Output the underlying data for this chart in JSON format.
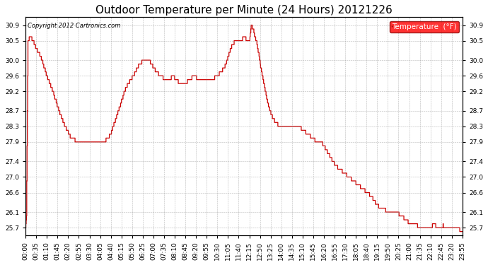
{
  "title": "Outdoor Temperature per Minute (24 Hours) 20121226",
  "copyright_text": "Copyright 2012 Cartronics.com",
  "legend_label": "Temperature  (°F)",
  "yticks": [
    25.7,
    26.1,
    26.6,
    27.0,
    27.4,
    27.9,
    28.3,
    28.7,
    29.2,
    29.6,
    30.0,
    30.5,
    30.9
  ],
  "ylim": [
    25.5,
    31.1
  ],
  "line_color": "#cc0000",
  "background_color": "#ffffff",
  "grid_color": "#888888",
  "title_fontsize": 11,
  "tick_fontsize": 6.5,
  "xlabel_rotation": 90,
  "xtick_labels": [
    "00:00",
    "00:35",
    "01:10",
    "01:45",
    "02:20",
    "02:55",
    "03:30",
    "04:05",
    "04:40",
    "05:15",
    "05:50",
    "06:25",
    "07:00",
    "07:35",
    "08:10",
    "08:45",
    "09:20",
    "09:55",
    "10:30",
    "11:05",
    "11:40",
    "12:15",
    "12:50",
    "13:25",
    "14:00",
    "14:35",
    "15:10",
    "15:45",
    "16:20",
    "16:55",
    "17:30",
    "18:05",
    "18:40",
    "19:15",
    "19:50",
    "20:25",
    "21:00",
    "21:35",
    "22:10",
    "22:45",
    "23:20",
    "23:55"
  ],
  "keypoints": [
    [
      0,
      25.7
    ],
    [
      3,
      26.0
    ],
    [
      8,
      30.5
    ],
    [
      15,
      30.6
    ],
    [
      25,
      30.5
    ],
    [
      35,
      30.3
    ],
    [
      50,
      30.1
    ],
    [
      70,
      29.6
    ],
    [
      90,
      29.2
    ],
    [
      110,
      28.7
    ],
    [
      130,
      28.3
    ],
    [
      150,
      28.0
    ],
    [
      175,
      27.9
    ],
    [
      200,
      27.9
    ],
    [
      225,
      27.9
    ],
    [
      240,
      27.9
    ],
    [
      260,
      27.9
    ],
    [
      280,
      28.1
    ],
    [
      310,
      28.8
    ],
    [
      330,
      29.3
    ],
    [
      355,
      29.6
    ],
    [
      375,
      29.9
    ],
    [
      390,
      30.0
    ],
    [
      405,
      30.0
    ],
    [
      415,
      29.9
    ],
    [
      430,
      29.7
    ],
    [
      445,
      29.6
    ],
    [
      460,
      29.5
    ],
    [
      475,
      29.5
    ],
    [
      485,
      29.6
    ],
    [
      495,
      29.5
    ],
    [
      510,
      29.4
    ],
    [
      525,
      29.4
    ],
    [
      540,
      29.5
    ],
    [
      555,
      29.6
    ],
    [
      570,
      29.5
    ],
    [
      585,
      29.5
    ],
    [
      600,
      29.5
    ],
    [
      615,
      29.5
    ],
    [
      630,
      29.6
    ],
    [
      645,
      29.7
    ],
    [
      660,
      29.9
    ],
    [
      675,
      30.3
    ],
    [
      690,
      30.5
    ],
    [
      700,
      30.5
    ],
    [
      710,
      30.5
    ],
    [
      720,
      30.6
    ],
    [
      730,
      30.5
    ],
    [
      738,
      30.5
    ],
    [
      743,
      30.9
    ],
    [
      750,
      30.8
    ],
    [
      755,
      30.6
    ],
    [
      760,
      30.5
    ],
    [
      765,
      30.3
    ],
    [
      775,
      29.8
    ],
    [
      785,
      29.4
    ],
    [
      795,
      29.0
    ],
    [
      805,
      28.7
    ],
    [
      815,
      28.5
    ],
    [
      825,
      28.4
    ],
    [
      835,
      28.3
    ],
    [
      850,
      28.3
    ],
    [
      865,
      28.3
    ],
    [
      880,
      28.3
    ],
    [
      900,
      28.3
    ],
    [
      915,
      28.2
    ],
    [
      930,
      28.1
    ],
    [
      945,
      28.0
    ],
    [
      960,
      27.9
    ],
    [
      975,
      27.9
    ],
    [
      990,
      27.7
    ],
    [
      1005,
      27.5
    ],
    [
      1020,
      27.3
    ],
    [
      1035,
      27.2
    ],
    [
      1050,
      27.1
    ],
    [
      1065,
      27.0
    ],
    [
      1080,
      26.9
    ],
    [
      1095,
      26.8
    ],
    [
      1110,
      26.7
    ],
    [
      1125,
      26.6
    ],
    [
      1140,
      26.5
    ],
    [
      1155,
      26.3
    ],
    [
      1170,
      26.2
    ],
    [
      1185,
      26.15
    ],
    [
      1200,
      26.1
    ],
    [
      1215,
      26.1
    ],
    [
      1230,
      26.05
    ],
    [
      1245,
      25.95
    ],
    [
      1260,
      25.85
    ],
    [
      1275,
      25.8
    ],
    [
      1290,
      25.75
    ],
    [
      1305,
      25.7
    ],
    [
      1320,
      25.7
    ],
    [
      1335,
      25.7
    ],
    [
      1340,
      25.75
    ],
    [
      1350,
      25.75
    ],
    [
      1355,
      25.7
    ],
    [
      1360,
      25.7
    ],
    [
      1375,
      25.75
    ],
    [
      1380,
      25.7
    ],
    [
      1390,
      25.7
    ],
    [
      1400,
      25.7
    ],
    [
      1415,
      25.7
    ],
    [
      1430,
      25.65
    ],
    [
      1439,
      25.6
    ]
  ]
}
